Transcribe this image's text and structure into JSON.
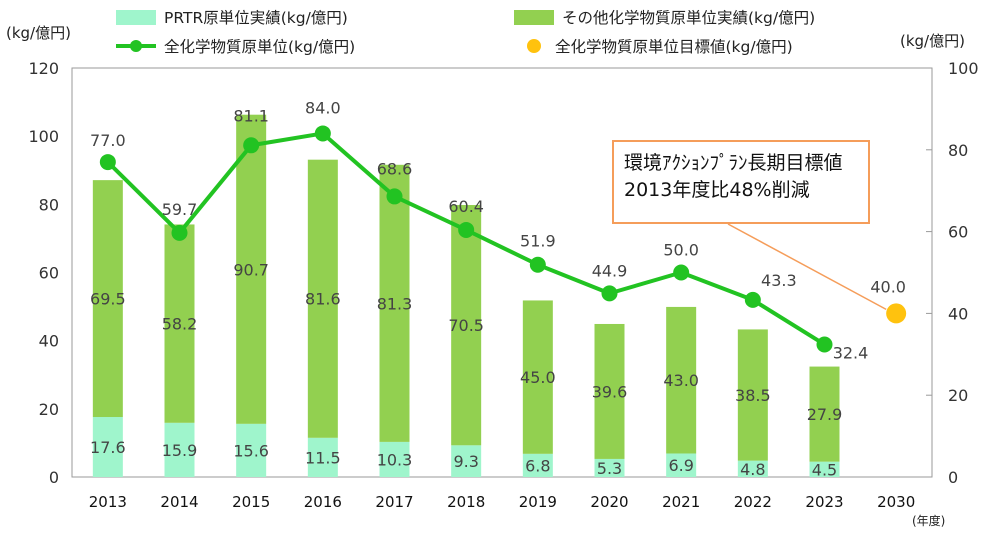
{
  "legend": {
    "prtr": "PRTR原単位実績(kg/億円)",
    "other": "その他化学物質原単位実績(kg/億円)",
    "total": "全化学物質原単位(kg/億円)",
    "target": "全化学物質原単位目標値(kg/億円)"
  },
  "axis": {
    "left_unit": "(kg/億円)",
    "right_unit": "(kg/億円)",
    "x_unit": "(年度)"
  },
  "callout": {
    "line1": "環境ｱｸｼｮﾝﾌﾟﾗﾝ長期目標値",
    "line2": "2013年度比48%削減"
  },
  "colors": {
    "prtr": "#9ff5cc",
    "other": "#92d050",
    "line": "#22c322",
    "target": "#ffc20e",
    "callout_border": "#f59d5a"
  },
  "chart_data": {
    "type": "bar",
    "categories": [
      "2013",
      "2014",
      "2015",
      "2016",
      "2017",
      "2018",
      "2019",
      "2020",
      "2021",
      "2022",
      "2023",
      "2030"
    ],
    "series": [
      {
        "name": "PRTR原単位実績(kg/億円)",
        "kind": "stacked-bar",
        "axis": "left",
        "values": [
          17.6,
          15.9,
          15.6,
          11.5,
          10.3,
          9.3,
          6.8,
          5.3,
          6.9,
          4.8,
          4.5,
          null
        ],
        "labels": [
          "17.6",
          "15.9",
          "15.6",
          "11.5",
          "10.3",
          "9.3",
          "6.8",
          "5.3",
          "6.9",
          "4.8",
          "4.5",
          ""
        ]
      },
      {
        "name": "その他化学物質原単位実績(kg/億円)",
        "kind": "stacked-bar",
        "axis": "left",
        "values": [
          69.5,
          58.2,
          90.7,
          81.6,
          81.3,
          70.5,
          45.0,
          39.6,
          43.0,
          38.5,
          27.9,
          null
        ],
        "labels": [
          "69.5",
          "58.2",
          "90.7",
          "81.6",
          "81.3",
          "70.5",
          "45.0",
          "39.6",
          "43.0",
          "38.5",
          "27.9",
          ""
        ]
      },
      {
        "name": "全化学物質原単位(kg/億円)",
        "kind": "line",
        "axis": "right",
        "values": [
          77.0,
          59.7,
          81.1,
          84.0,
          68.6,
          60.4,
          51.9,
          44.9,
          50.0,
          43.3,
          32.4,
          null
        ],
        "labels": [
          "77.0",
          "59.7",
          "81.1",
          "84.0",
          "68.6",
          "60.4",
          "51.9",
          "44.9",
          "50.0",
          "43.3",
          "32.4",
          ""
        ]
      },
      {
        "name": "全化学物質原単位目標値(kg/億円)",
        "kind": "point",
        "axis": "right",
        "values": [
          null,
          null,
          null,
          null,
          null,
          null,
          null,
          null,
          null,
          null,
          null,
          40.0
        ],
        "labels": [
          "",
          "",
          "",
          "",
          "",
          "",
          "",
          "",
          "",
          "",
          "",
          "40.0"
        ]
      }
    ],
    "left_axis": {
      "ylim": [
        0,
        120
      ],
      "ticks": [
        "0",
        "20",
        "40",
        "60",
        "80",
        "100",
        "120"
      ]
    },
    "right_axis": {
      "ylim": [
        0,
        100
      ],
      "ticks": [
        "0",
        "20",
        "40",
        "60",
        "80",
        "100"
      ]
    },
    "xlabel": "(年度)",
    "grid": false
  }
}
